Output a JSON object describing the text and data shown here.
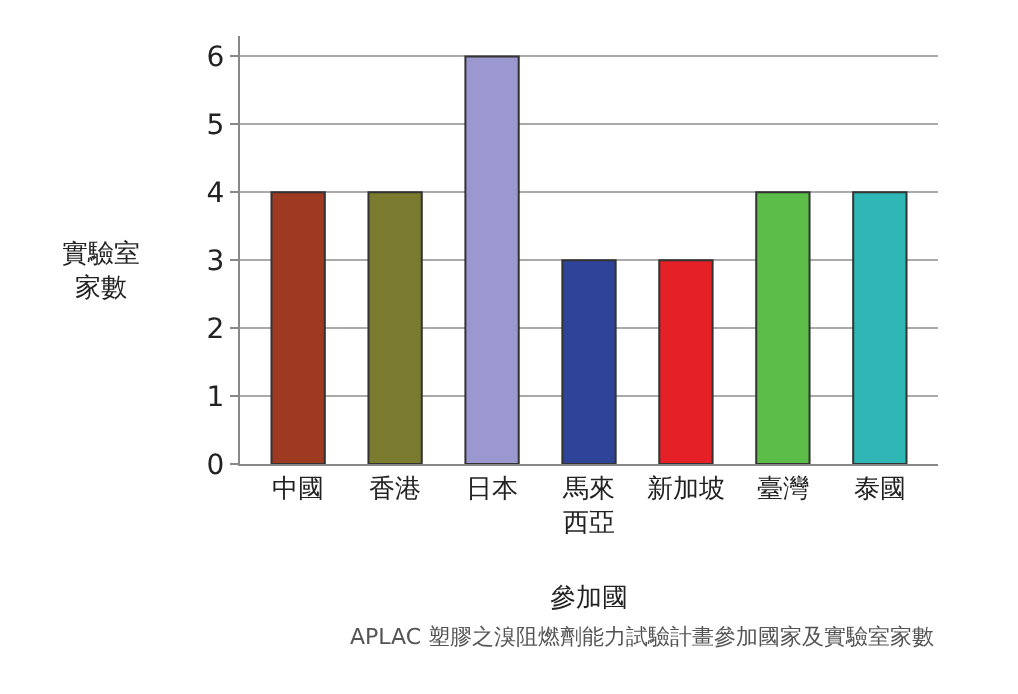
{
  "chart_data": {
    "type": "bar",
    "categories": [
      "中國",
      "香港",
      "日本",
      "馬來西亞",
      "新加坡",
      "臺灣",
      "泰國"
    ],
    "values": [
      4,
      4,
      6,
      3,
      3,
      4,
      4
    ],
    "colors": [
      "#9e3a22",
      "#7b7b30",
      "#9b97cf",
      "#2f4499",
      "#e52026",
      "#5cbd48",
      "#2fb7b5"
    ],
    "xlabel": "參加國",
    "ylabel": "實驗室家數",
    "ylim": [
      0,
      6.3
    ],
    "yticks": [
      0,
      1,
      2,
      3,
      4,
      5,
      6
    ],
    "grid": "y",
    "annotations": [
      "APLAC 塑膠之溴阻燃劑能力試驗計畫參加國家及實驗室家數"
    ]
  }
}
